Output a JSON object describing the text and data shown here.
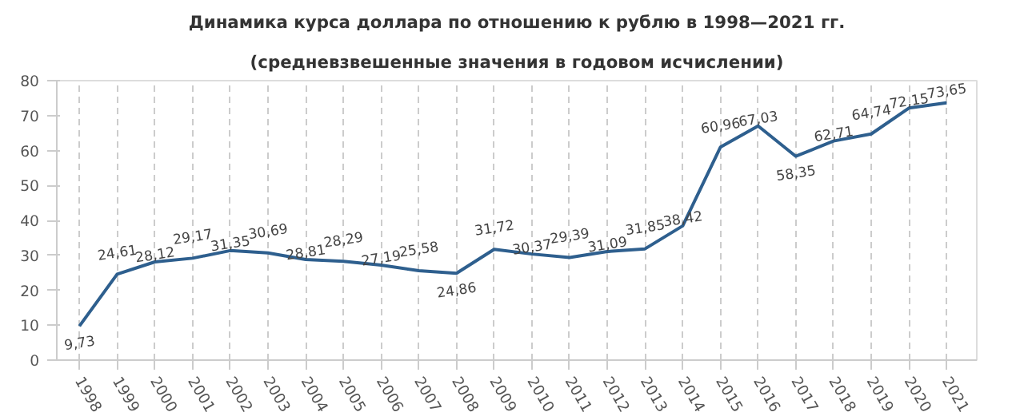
{
  "chart_data": {
    "type": "line",
    "title": "Динамика курса доллара по отношению к рублю в 1998—2021 гг.",
    "subtitle": "(средневзвешенные значения в годовом исчислении)",
    "categories": [
      "1998",
      "1999",
      "2000",
      "2001",
      "2002",
      "2003",
      "2004",
      "2005",
      "2006",
      "2007",
      "2008",
      "2009",
      "2010",
      "2011",
      "2012",
      "2013",
      "2014",
      "2015",
      "2016",
      "2017",
      "2018",
      "2019",
      "2020",
      "2021"
    ],
    "series": [
      {
        "color": "#2e5f8e",
        "values": [
          9.73,
          24.61,
          28.12,
          29.17,
          31.35,
          30.69,
          28.81,
          28.29,
          27.19,
          25.58,
          24.86,
          31.72,
          30.37,
          29.39,
          31.09,
          31.85,
          38.42,
          60.96,
          67.03,
          58.35,
          62.71,
          64.74,
          72.15,
          73.65
        ],
        "value_labels": [
          "9,73",
          "24,61",
          "28,12",
          "29,17",
          "31,35",
          "30,69",
          "28,81",
          "28,29",
          "27,19",
          "25,58",
          "24,86",
          "31,72",
          "30,37",
          "29,39",
          "31,09",
          "31,85",
          "38,42",
          "60,96",
          "67,03",
          "58,35",
          "62,71",
          "64,74",
          "72,15",
          "73,65"
        ]
      }
    ],
    "ylim": [
      0,
      80
    ],
    "yticks": [
      0,
      10,
      20,
      30,
      40,
      50,
      60,
      70,
      80
    ],
    "grid": "x",
    "marker": "none",
    "line_style": "solid"
  }
}
